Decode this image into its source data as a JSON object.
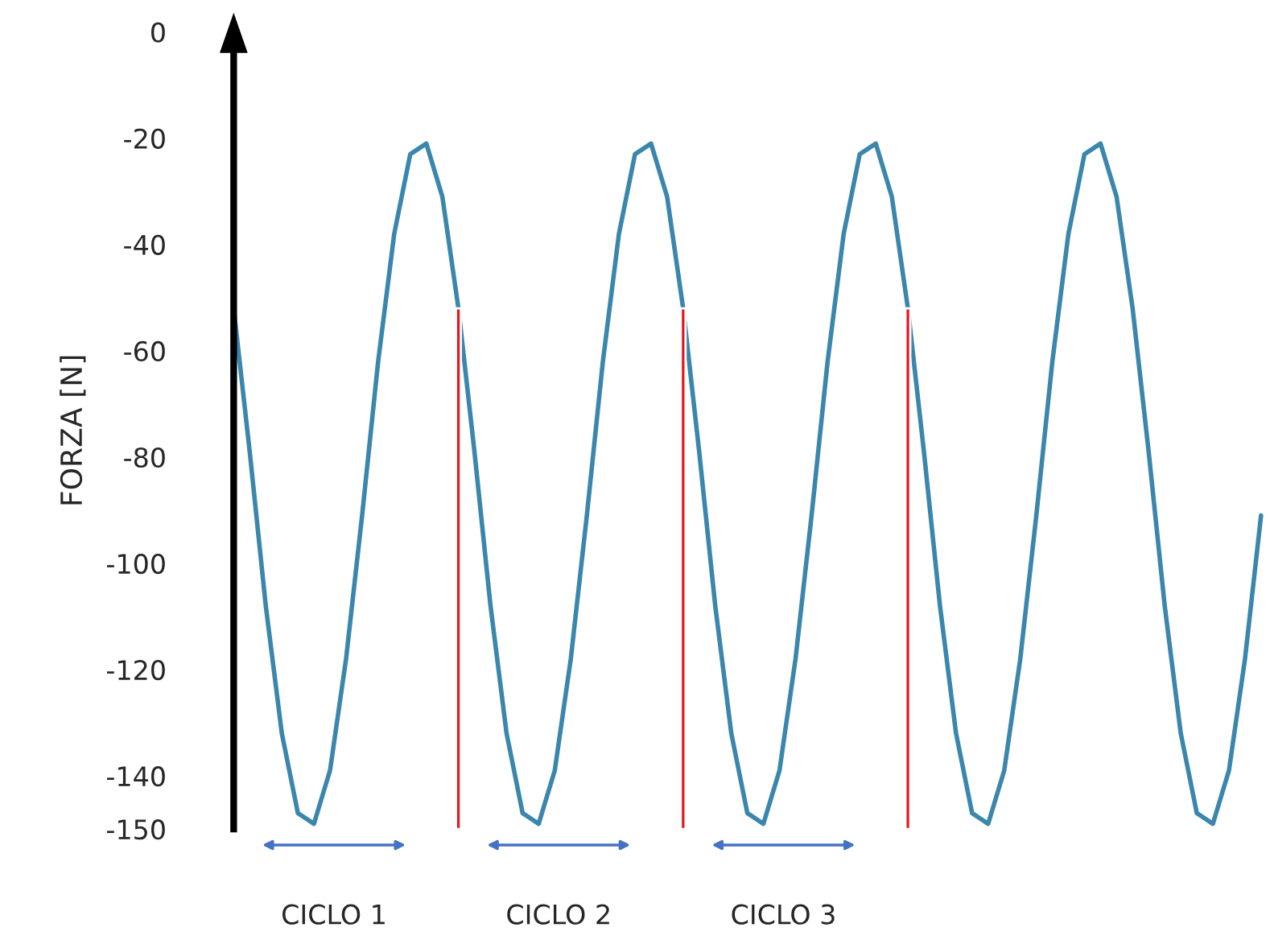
{
  "chart_data": {
    "type": "line",
    "ylabel": "FORZA [N]",
    "categories": [
      null,
      null,
      null,
      null,
      null,
      null,
      null,
      null,
      null,
      null,
      null,
      null,
      null,
      null,
      null,
      null,
      null,
      null,
      null,
      null,
      null,
      null,
      null,
      null,
      null,
      null,
      null,
      null,
      null,
      null,
      null,
      null,
      null,
      null,
      null,
      null,
      null,
      null,
      null,
      null,
      null,
      null,
      null,
      null,
      null,
      null,
      null,
      null,
      null,
      null,
      null,
      null,
      null,
      null,
      null,
      null,
      null,
      null,
      null,
      null,
      null,
      null,
      null,
      null,
      null
    ],
    "series": [
      {
        "color": "#3b86ad",
        "values": [
          -52,
          -79,
          -108,
          -132,
          -147,
          -149,
          -139,
          -118,
          -91,
          -62,
          -38,
          -23,
          -21,
          -31,
          -52,
          -79,
          -108,
          -132,
          -147,
          -149,
          -139,
          -118,
          -91,
          -62,
          -38,
          -23,
          -21,
          -31,
          -52,
          -79,
          -108,
          -132,
          -147,
          -149,
          -139,
          -118,
          -91,
          -62,
          -38,
          -23,
          -21,
          -31,
          -52,
          -79,
          -108,
          -132,
          -147,
          -149,
          -139,
          -118,
          -91,
          -62,
          -38,
          -23,
          -21,
          -31,
          -52,
          -79,
          -108,
          -132,
          -147,
          -149,
          -139,
          -118,
          -91
        ]
      },
      {
        "type": "bar",
        "color": "#e8141c",
        "values": [
          null,
          null,
          null,
          null,
          null,
          null,
          null,
          null,
          null,
          null,
          null,
          null,
          null,
          null,
          98,
          null,
          null,
          null,
          null,
          null,
          null,
          null,
          null,
          null,
          null,
          null,
          null,
          null,
          98,
          null,
          null,
          null,
          null,
          null,
          null,
          null,
          null,
          null,
          null,
          null,
          null,
          null,
          98,
          null,
          null,
          null,
          null,
          null,
          null,
          null,
          null,
          null,
          null,
          null,
          null,
          null,
          null,
          null,
          null,
          null,
          null,
          null,
          null,
          null,
          null
        ],
        "base": [
          null,
          null,
          null,
          null,
          null,
          null,
          null,
          null,
          null,
          null,
          null,
          null,
          null,
          null,
          -150,
          null,
          null,
          null,
          null,
          null,
          null,
          null,
          null,
          null,
          null,
          null,
          null,
          null,
          -150,
          null,
          null,
          null,
          null,
          null,
          null,
          null,
          null,
          null,
          null,
          null,
          null,
          null,
          -150,
          null,
          null,
          null,
          null,
          null,
          null,
          null,
          null,
          null,
          null,
          null,
          null,
          null,
          null,
          null,
          null,
          null,
          null,
          null,
          null,
          null,
          null
        ]
      }
    ],
    "ylim": [
      -150,
      0
    ],
    "yticks": [
      0,
      -20,
      -40,
      -60,
      -80,
      -100,
      -120,
      -140,
      -150
    ],
    "tick_labels": "y",
    "grid": false,
    "legend": false,
    "annotations": [
      "CICLO 1",
      "CICLO 2",
      "CICLO 3"
    ]
  }
}
